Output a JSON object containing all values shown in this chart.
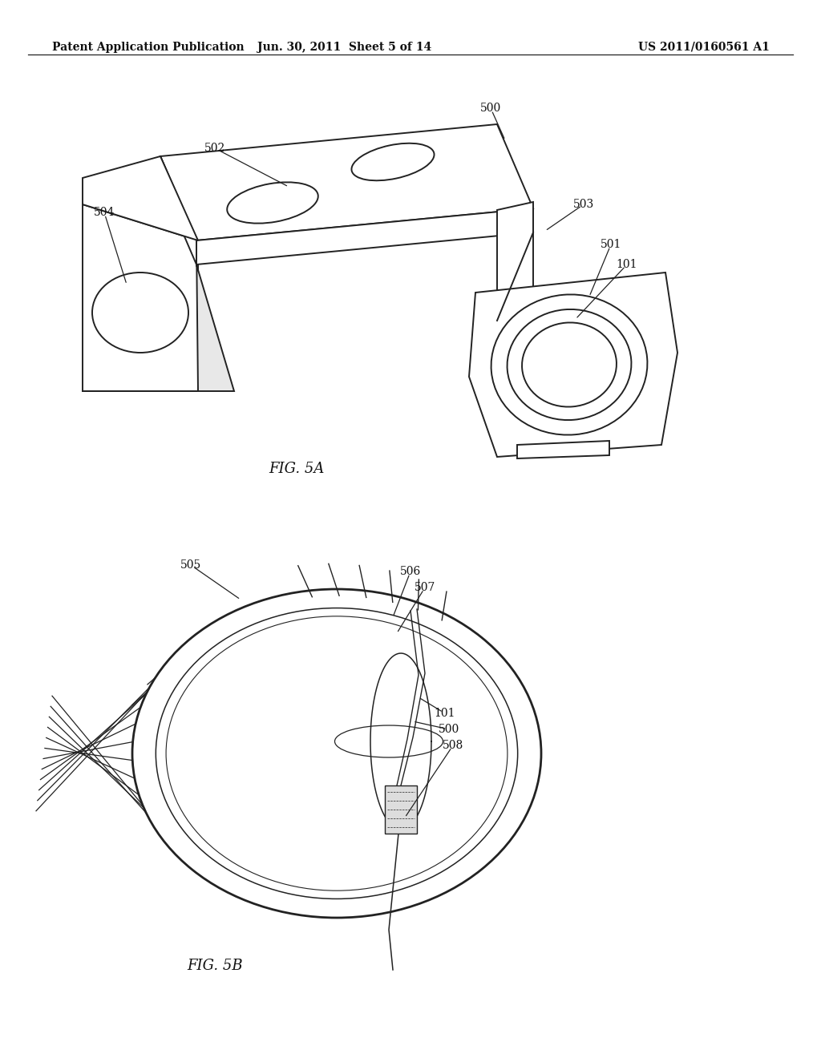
{
  "background_color": "#ffffff",
  "header_left": "Patent Application Publication",
  "header_mid": "Jun. 30, 2011  Sheet 5 of 14",
  "header_right": "US 2011/0160561 A1",
  "fig5a_label": "FIG. 5A",
  "fig5b_label": "FIG. 5B",
  "line_color": "#222222",
  "text_color": "#111111",
  "header_fontsize": 10,
  "label_fontsize": 10,
  "fig_label_fontsize": 13
}
